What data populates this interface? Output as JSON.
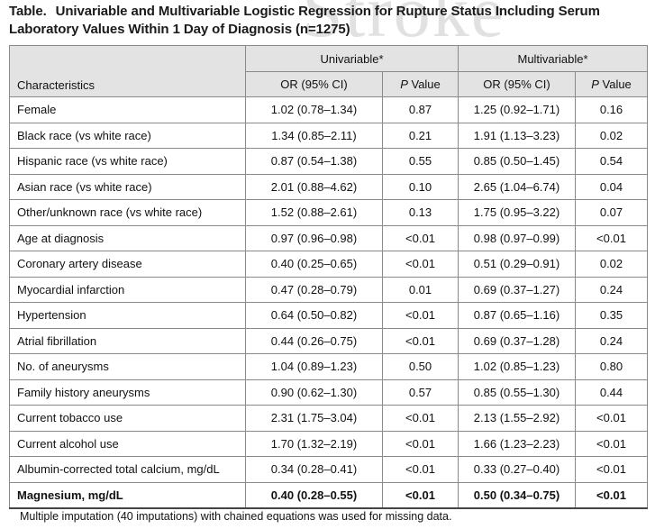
{
  "title": {
    "label": "Table.",
    "text": "Univariable and Multivariable Logistic Regression for Rupture Status Including Serum Laboratory Values Within 1 Day of Diagnosis (n=1275)"
  },
  "watermark": "Stroke",
  "header": {
    "characteristics": "Characteristics",
    "univariable": "Univariable*",
    "multivariable": "Multivariable*",
    "or_ci": "OR (95% CI)",
    "p_italic": "P",
    "p_rest": " Value"
  },
  "rows": [
    {
      "name": "Female",
      "uni_or": "1.02 (0.78–1.34)",
      "uni_p": "0.87",
      "multi_or": "1.25 (0.92–1.71)",
      "multi_p": "0.16"
    },
    {
      "name": "Black race (vs white race)",
      "uni_or": "1.34 (0.85–2.11)",
      "uni_p": "0.21",
      "multi_or": "1.91 (1.13–3.23)",
      "multi_p": "0.02"
    },
    {
      "name": "Hispanic race (vs white race)",
      "uni_or": "0.87 (0.54–1.38)",
      "uni_p": "0.55",
      "multi_or": "0.85 (0.50–1.45)",
      "multi_p": "0.54"
    },
    {
      "name": "Asian race (vs white race)",
      "uni_or": "2.01 (0.88–4.62)",
      "uni_p": "0.10",
      "multi_or": "2.65 (1.04–6.74)",
      "multi_p": "0.04"
    },
    {
      "name": "Other/unknown race (vs white race)",
      "uni_or": "1.52 (0.88–2.61)",
      "uni_p": "0.13",
      "multi_or": "1.75 (0.95–3.22)",
      "multi_p": "0.07"
    },
    {
      "name": "Age at diagnosis",
      "uni_or": "0.97 (0.96–0.98)",
      "uni_p": "<0.01",
      "multi_or": "0.98 (0.97–0.99)",
      "multi_p": "<0.01"
    },
    {
      "name": "Coronary artery disease",
      "uni_or": "0.40 (0.25–0.65)",
      "uni_p": "<0.01",
      "multi_or": "0.51 (0.29–0.91)",
      "multi_p": "0.02"
    },
    {
      "name": "Myocardial infarction",
      "uni_or": "0.47 (0.28–0.79)",
      "uni_p": "0.01",
      "multi_or": "0.69 (0.37–1.27)",
      "multi_p": "0.24"
    },
    {
      "name": "Hypertension",
      "uni_or": "0.64 (0.50–0.82)",
      "uni_p": "<0.01",
      "multi_or": "0.87 (0.65–1.16)",
      "multi_p": "0.35"
    },
    {
      "name": "Atrial fibrillation",
      "uni_or": "0.44 (0.26–0.75)",
      "uni_p": "<0.01",
      "multi_or": "0.69 (0.37–1.28)",
      "multi_p": "0.24"
    },
    {
      "name": "No. of aneurysms",
      "uni_or": "1.04 (0.89–1.23)",
      "uni_p": "0.50",
      "multi_or": "1.02 (0.85–1.23)",
      "multi_p": "0.80"
    },
    {
      "name": "Family history aneurysms",
      "uni_or": "0.90 (0.62–1.30)",
      "uni_p": "0.57",
      "multi_or": "0.85 (0.55–1.30)",
      "multi_p": "0.44"
    },
    {
      "name": "Current tobacco use",
      "uni_or": "2.31 (1.75–3.04)",
      "uni_p": "<0.01",
      "multi_or": "2.13 (1.55–2.92)",
      "multi_p": "<0.01"
    },
    {
      "name": "Current alcohol use",
      "uni_or": "1.70 (1.32–2.19)",
      "uni_p": "<0.01",
      "multi_or": "1.66 (1.23–2.23)",
      "multi_p": "<0.01"
    },
    {
      "name": "Albumin-corrected total calcium, mg/dL",
      "uni_or": "0.34 (0.28–0.41)",
      "uni_p": "<0.01",
      "multi_or": "0.33 (0.27–0.40)",
      "multi_p": "<0.01"
    },
    {
      "name": "Magnesium, mg/dL",
      "uni_or": "0.40 (0.28–0.55)",
      "uni_p": "<0.01",
      "multi_or": "0.50 (0.34–0.75)",
      "multi_p": "<0.01",
      "bold": true
    }
  ],
  "footnote": "Multiple imputation (40 imputations) with chained equations was used for missing data."
}
